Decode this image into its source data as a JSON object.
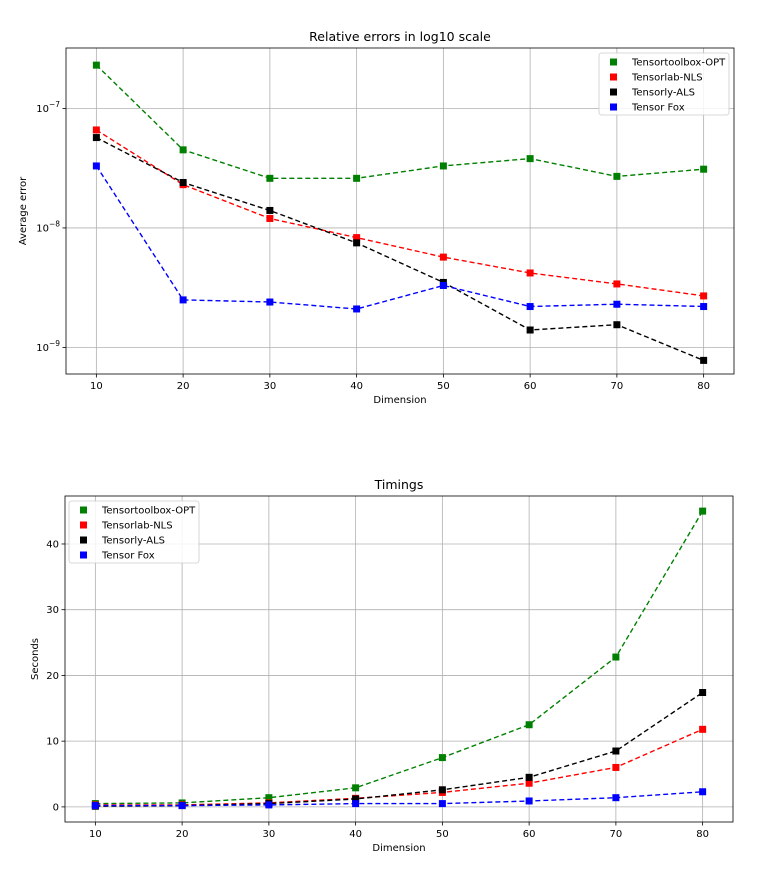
{
  "chart_data": [
    {
      "type": "line",
      "title": "Relative errors in log10 scale",
      "xlabel": "Dimension",
      "ylabel": "Average error",
      "yscale": "log",
      "xlim": [
        6.5,
        83.5
      ],
      "ylim": [
        6e-10,
        3.2e-07
      ],
      "x": [
        10,
        20,
        30,
        40,
        50,
        60,
        70,
        80
      ],
      "x_ticks": [
        "10",
        "20",
        "30",
        "40",
        "50",
        "60",
        "70",
        "80"
      ],
      "y_ticks": [
        {
          "value": 1e-09,
          "base": "10",
          "exp": "−9"
        },
        {
          "value": 1e-08,
          "base": "10",
          "exp": "−8"
        },
        {
          "value": 1e-07,
          "base": "10",
          "exp": "−7"
        }
      ],
      "grid": true,
      "legend_position": "top-right",
      "series": [
        {
          "name": "Tensortoolbox-OPT",
          "color": "#008000",
          "values": [
            2.3e-07,
            4.5e-08,
            2.6e-08,
            2.6e-08,
            3.3e-08,
            3.8e-08,
            2.7e-08,
            3.1e-08
          ]
        },
        {
          "name": "Tensorlab-NLS",
          "color": "#ff0000",
          "values": [
            6.6e-08,
            2.3e-08,
            1.2e-08,
            8.3e-09,
            5.7e-09,
            4.2e-09,
            3.4e-09,
            2.7e-09
          ]
        },
        {
          "name": "Tensorly-ALS",
          "color": "#000000",
          "values": [
            5.7e-08,
            2.4e-08,
            1.4e-08,
            7.5e-09,
            3.5e-09,
            1.4e-09,
            1.55e-09,
            7.8e-10
          ]
        },
        {
          "name": "Tensor Fox",
          "color": "#0000ff",
          "values": [
            3.3e-08,
            2.5e-09,
            2.4e-09,
            2.1e-09,
            3.3e-09,
            2.2e-09,
            2.3e-09,
            2.2e-09
          ]
        }
      ]
    },
    {
      "type": "line",
      "title": "Timings",
      "xlabel": "Dimension",
      "ylabel": "Seconds",
      "yscale": "linear",
      "xlim": [
        6.5,
        83.5
      ],
      "ylim": [
        -2.3,
        47.3
      ],
      "x": [
        10,
        20,
        30,
        40,
        50,
        60,
        70,
        80
      ],
      "x_ticks": [
        "10",
        "20",
        "30",
        "40",
        "50",
        "60",
        "70",
        "80"
      ],
      "y_ticks": [
        {
          "value": 0,
          "label": "0"
        },
        {
          "value": 10,
          "label": "10"
        },
        {
          "value": 20,
          "label": "20"
        },
        {
          "value": 30,
          "label": "30"
        },
        {
          "value": 40,
          "label": "40"
        }
      ],
      "grid": true,
      "legend_position": "top-left",
      "series": [
        {
          "name": "Tensortoolbox-OPT",
          "color": "#008000",
          "values": [
            0.5,
            0.6,
            1.4,
            2.9,
            7.5,
            12.5,
            22.8,
            45.0
          ]
        },
        {
          "name": "Tensorlab-NLS",
          "color": "#ff0000",
          "values": [
            0.3,
            0.3,
            0.6,
            1.3,
            2.2,
            3.6,
            6.0,
            11.8
          ]
        },
        {
          "name": "Tensorly-ALS",
          "color": "#000000",
          "values": [
            0.1,
            0.2,
            0.5,
            1.2,
            2.6,
            4.5,
            8.5,
            17.4
          ]
        },
        {
          "name": "Tensor Fox",
          "color": "#0000ff",
          "values": [
            0.2,
            0.2,
            0.3,
            0.5,
            0.5,
            0.9,
            1.4,
            2.3
          ]
        }
      ]
    }
  ]
}
